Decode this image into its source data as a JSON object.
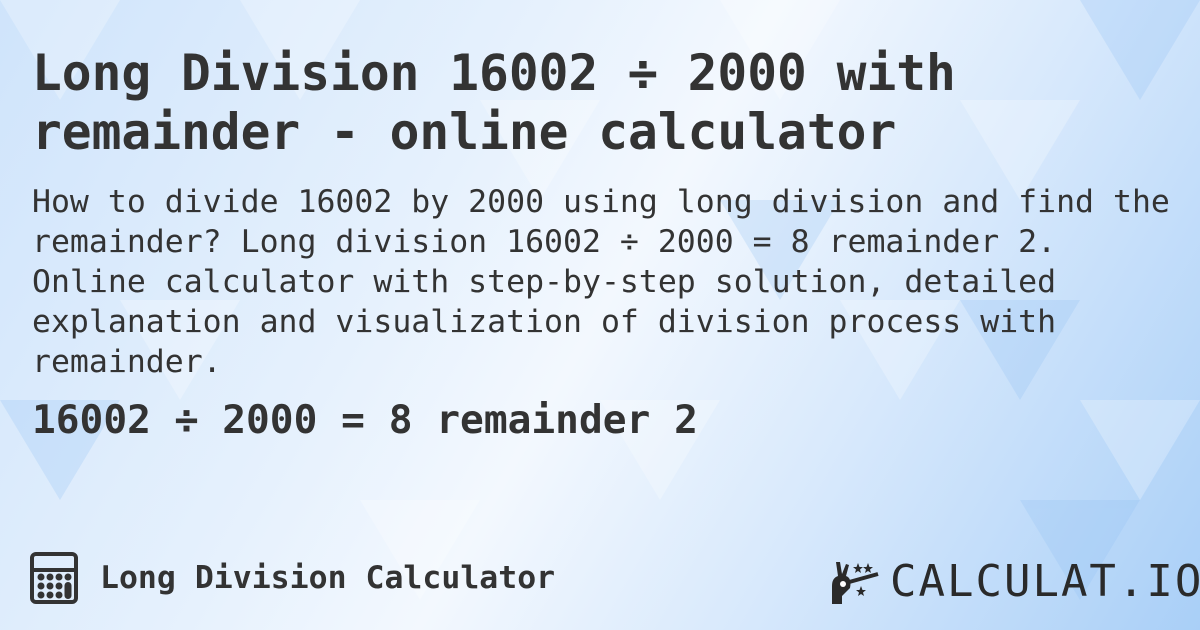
{
  "title": "Long Division 16002 ÷ 2000 with remainder - online calculator",
  "description": "How to divide 16002 by 2000 using long division and find the remainder? Long division 16002 ÷ 2000 = 8 remainder 2. Online calculator with step-by-step solution, detailed explanation and visualization of division process with remainder.",
  "result": "16002 ÷ 2000 = 8 remainder 2",
  "footer": {
    "label": "Long Division Calculator",
    "icon": "calculator-icon"
  },
  "logo": {
    "text": "CALCULAT.IO",
    "icon": "magic-hand-wand-icon"
  },
  "colors": {
    "text": "#333333",
    "background": "#d8e9fc"
  }
}
